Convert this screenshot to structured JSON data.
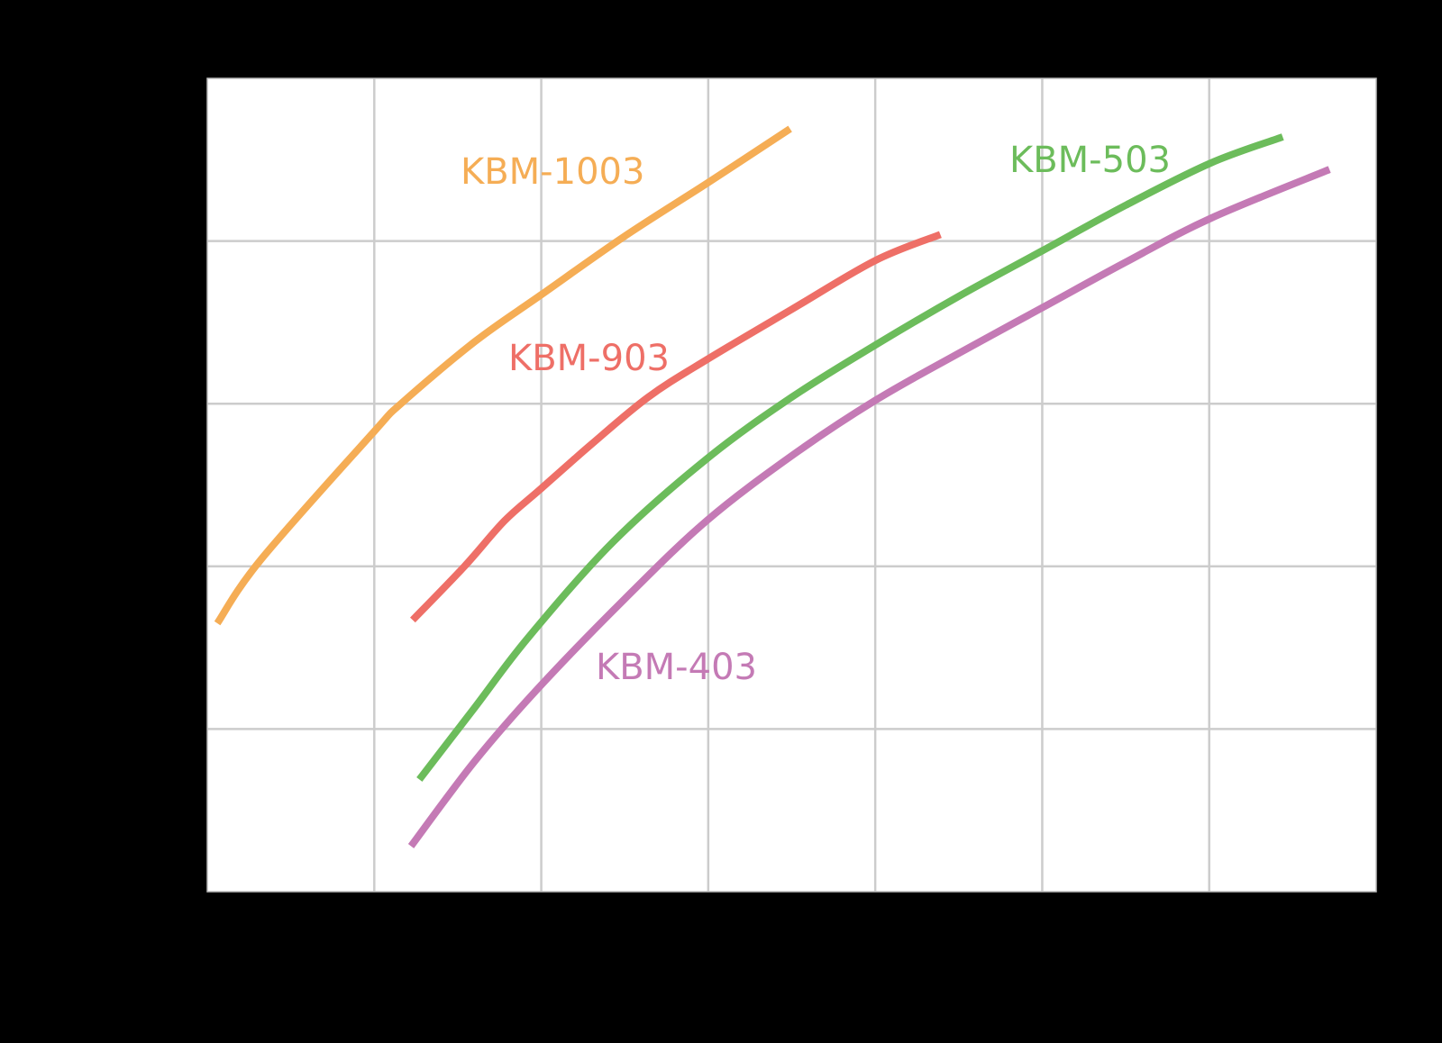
{
  "chart_data": {
    "type": "line",
    "title": "",
    "xlabel": "",
    "ylabel": "",
    "xlim": [
      0,
      7
    ],
    "ylim": [
      0,
      5
    ],
    "grid": true,
    "x_gridlines": [
      1,
      2,
      3,
      4,
      5,
      6
    ],
    "y_gridlines": [
      1,
      2,
      3,
      4
    ],
    "legend": "inline labels",
    "series": [
      {
        "name": "KBM-1003",
        "color": "#F5AD55",
        "label_pos": [
          1.5,
          4.45
        ],
        "points": [
          [
            0.06,
            1.65
          ],
          [
            0.32,
            2.04
          ],
          [
            1.0,
            2.83
          ],
          [
            1.16,
            3.0
          ],
          [
            1.6,
            3.38
          ],
          [
            2.0,
            3.67
          ],
          [
            2.5,
            4.03
          ],
          [
            3.0,
            4.36
          ],
          [
            3.49,
            4.69
          ]
        ]
      },
      {
        "name": "KBM-903",
        "color": "#EE6F67",
        "label_pos": [
          1.8,
          3.25
        ],
        "points": [
          [
            1.23,
            1.67
          ],
          [
            1.54,
            2.0
          ],
          [
            1.78,
            2.28
          ],
          [
            1.99,
            2.47
          ],
          [
            2.3,
            2.75
          ],
          [
            2.64,
            3.04
          ],
          [
            2.99,
            3.27
          ],
          [
            3.5,
            3.58
          ],
          [
            4.0,
            3.88
          ],
          [
            4.39,
            4.04
          ]
        ]
      },
      {
        "name": "KBM-503",
        "color": "#6CBC5B",
        "label_pos": [
          4.85,
          4.55
        ],
        "points": [
          [
            1.27,
            0.69
          ],
          [
            1.6,
            1.13
          ],
          [
            1.92,
            1.56
          ],
          [
            2.43,
            2.15
          ],
          [
            2.99,
            2.66
          ],
          [
            3.5,
            3.04
          ],
          [
            4.0,
            3.36
          ],
          [
            4.5,
            3.66
          ],
          [
            5.0,
            3.94
          ],
          [
            5.5,
            4.22
          ],
          [
            6.01,
            4.48
          ],
          [
            6.44,
            4.64
          ]
        ]
      },
      {
        "name": "KBM-403",
        "color": "#C47AB5",
        "label_pos": [
          2.3,
          1.38
        ],
        "points": [
          [
            1.22,
            0.28
          ],
          [
            1.6,
            0.8
          ],
          [
            1.99,
            1.26
          ],
          [
            2.5,
            1.8
          ],
          [
            2.99,
            2.28
          ],
          [
            3.5,
            2.68
          ],
          [
            4.0,
            3.02
          ],
          [
            4.5,
            3.31
          ],
          [
            5.0,
            3.59
          ],
          [
            5.5,
            3.87
          ],
          [
            6.01,
            4.14
          ],
          [
            6.72,
            4.44
          ]
        ]
      }
    ]
  },
  "labels": {
    "kbm1003": "KBM-1003",
    "kbm903": "KBM-903",
    "kbm503": "KBM-503",
    "kbm403": "KBM-403"
  },
  "colors": {
    "background": "#000000",
    "plot_background": "#FFFFFF",
    "grid": "#CCCCCC"
  }
}
